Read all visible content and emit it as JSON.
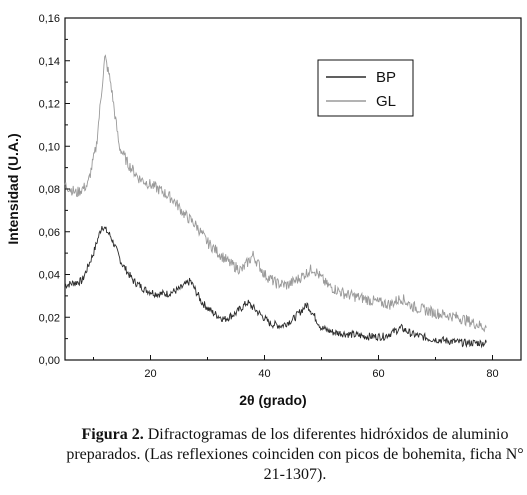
{
  "chart_data": {
    "type": "line",
    "xlabel": "2θ (grado)",
    "ylabel": "Intensidad (U.A.)",
    "xlim": [
      5,
      85
    ],
    "ylim": [
      0,
      0.16
    ],
    "xticks": [
      20,
      40,
      60,
      80
    ],
    "yticks": [
      "0,00",
      "0,02",
      "0,04",
      "0,06",
      "0,08",
      "0,10",
      "0,12",
      "0,14",
      "0,16"
    ],
    "yticks_values": [
      0,
      0.02,
      0.04,
      0.06,
      0.08,
      0.1,
      0.12,
      0.14,
      0.16
    ],
    "legend_position": "top-right",
    "grid": false,
    "series": [
      {
        "name": "BP",
        "color": "#2b2b2b",
        "x": [
          5,
          8,
          10,
          11.5,
          13,
          15,
          17,
          19,
          21,
          23,
          25,
          27,
          29,
          31,
          33,
          35,
          37,
          39,
          41,
          43,
          45,
          47.5,
          50,
          52,
          55,
          58,
          61,
          64,
          66,
          69,
          72,
          75,
          79
        ],
        "y": [
          0.035,
          0.037,
          0.05,
          0.063,
          0.058,
          0.045,
          0.037,
          0.033,
          0.031,
          0.031,
          0.033,
          0.037,
          0.027,
          0.022,
          0.019,
          0.022,
          0.027,
          0.022,
          0.017,
          0.016,
          0.019,
          0.026,
          0.015,
          0.013,
          0.012,
          0.011,
          0.011,
          0.015,
          0.012,
          0.01,
          0.009,
          0.008,
          0.008
        ]
      },
      {
        "name": "GL",
        "color": "#9a9a9a",
        "x": [
          5,
          7,
          9,
          10.5,
          12,
          13,
          14.5,
          16,
          18,
          20,
          22,
          24,
          26,
          28,
          30,
          32,
          34,
          36,
          38,
          40,
          42,
          44,
          46,
          48.5,
          51,
          54,
          57,
          60,
          62,
          64,
          66,
          70,
          74,
          79
        ],
        "y": [
          0.082,
          0.078,
          0.082,
          0.1,
          0.142,
          0.13,
          0.1,
          0.092,
          0.085,
          0.082,
          0.079,
          0.075,
          0.068,
          0.063,
          0.055,
          0.05,
          0.045,
          0.042,
          0.049,
          0.04,
          0.036,
          0.035,
          0.038,
          0.043,
          0.035,
          0.031,
          0.029,
          0.027,
          0.026,
          0.029,
          0.025,
          0.022,
          0.02,
          0.015
        ]
      }
    ]
  },
  "caption": {
    "label": "Figura 2.",
    "text": " Difractogramas de los diferentes hidróxidos de aluminio preparados.  (Las reflexiones coinciden con picos de bohemita, ficha N° 21-1307)."
  }
}
